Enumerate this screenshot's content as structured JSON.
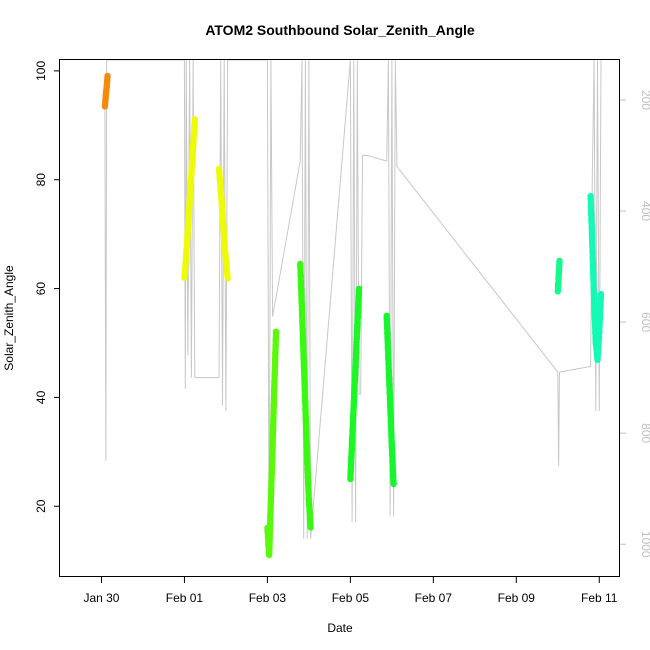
{
  "chart_data": {
    "type": "scatter",
    "title": "ATOM2 Southbound Solar_Zenith_Angle",
    "xlabel": "Date",
    "ylabel": "Solar_Zenith_Angle",
    "x_ticks": [
      "Jan 30",
      "Feb 01",
      "Feb 03",
      "Feb 05",
      "Feb 07",
      "Feb 09",
      "Feb 11"
    ],
    "y_ticks": [
      20,
      40,
      60,
      80,
      100
    ],
    "y_right_ticks": [
      200,
      400,
      600,
      800,
      1000
    ],
    "xlim": [
      "2012-01-29T00:00",
      "2012-02-11T12:00"
    ],
    "ylim": [
      7,
      102
    ],
    "y_right_lim": [
      1059,
      128
    ],
    "y_right_reversed": true,
    "grid": false,
    "depth_trace_color": "#c8c8c8",
    "series": [
      {
        "color": "#f58a0a",
        "points": [
          [
            "2012-01-30T02:00",
            93.5
          ],
          [
            "2012-01-30T02:30",
            95.5
          ],
          [
            "2012-01-30T03:00",
            97
          ],
          [
            "2012-01-30T03:30",
            99
          ]
        ]
      },
      {
        "color": "#eefb08",
        "points": [
          [
            "2012-02-01T00:00",
            62
          ],
          [
            "2012-02-01T01:00",
            66
          ],
          [
            "2012-02-01T02:00",
            71
          ],
          [
            "2012-02-01T03:00",
            76
          ],
          [
            "2012-02-01T04:00",
            81
          ],
          [
            "2012-02-01T05:00",
            86
          ],
          [
            "2012-02-01T06:00",
            91
          ]
        ]
      },
      {
        "color": "#eefb08",
        "points": [
          [
            "2012-02-01T20:00",
            82
          ],
          [
            "2012-02-01T21:00",
            78
          ],
          [
            "2012-02-01T22:00",
            74
          ],
          [
            "2012-02-01T23:00",
            69
          ],
          [
            "2012-02-02T00:00",
            65
          ],
          [
            "2012-02-02T01:00",
            62
          ]
        ]
      },
      {
        "color": "#5af90a",
        "points": [
          [
            "2012-02-03T00:00",
            16
          ],
          [
            "2012-02-03T01:00",
            11
          ],
          [
            "2012-02-03T02:00",
            21
          ],
          [
            "2012-02-03T03:00",
            31
          ],
          [
            "2012-02-03T04:00",
            42
          ],
          [
            "2012-02-03T05:00",
            52
          ]
        ]
      },
      {
        "color": "#39f910",
        "points": [
          [
            "2012-02-03T19:00",
            64.5
          ],
          [
            "2012-02-03T20:00",
            56
          ],
          [
            "2012-02-03T21:00",
            47
          ],
          [
            "2012-02-03T22:00",
            38
          ],
          [
            "2012-02-03T23:00",
            29
          ],
          [
            "2012-02-04T00:00",
            21
          ],
          [
            "2012-02-04T01:00",
            16
          ]
        ]
      },
      {
        "color": "#1bf825",
        "points": [
          [
            "2012-02-05T00:00",
            25
          ],
          [
            "2012-02-05T01:00",
            32
          ],
          [
            "2012-02-05T02:00",
            39
          ],
          [
            "2012-02-05T03:00",
            46
          ],
          [
            "2012-02-05T04:00",
            53
          ],
          [
            "2012-02-05T05:00",
            60
          ]
        ]
      },
      {
        "color": "#17f52e",
        "points": [
          [
            "2012-02-05T21:00",
            55
          ],
          [
            "2012-02-05T22:00",
            47
          ],
          [
            "2012-02-05T23:00",
            39
          ],
          [
            "2012-02-06T00:00",
            31
          ],
          [
            "2012-02-06T01:00",
            24
          ]
        ]
      },
      {
        "color": "#14fa8c",
        "points": [
          [
            "2012-02-10T00:00",
            59.5
          ],
          [
            "2012-02-10T00:30",
            62
          ],
          [
            "2012-02-10T01:00",
            65
          ]
        ]
      },
      {
        "color": "#14fab4",
        "points": [
          [
            "2012-02-10T19:00",
            77
          ],
          [
            "2012-02-10T20:00",
            68
          ],
          [
            "2012-02-10T21:00",
            58
          ],
          [
            "2012-02-10T22:00",
            50
          ],
          [
            "2012-02-10T23:00",
            47
          ],
          [
            "2012-02-11T00:00",
            52
          ],
          [
            "2012-02-11T01:00",
            59
          ]
        ]
      }
    ],
    "depth_trace": [
      [
        "2012-01-30T02:00",
        200
      ],
      [
        "2012-01-30T02:30",
        850
      ],
      [
        "2012-01-30T03:00",
        128
      ],
      [
        "2012-02-01T00:00",
        128
      ],
      [
        "2012-02-01T00:30",
        720
      ],
      [
        "2012-02-01T01:00",
        128
      ],
      [
        "2012-02-01T02:00",
        660
      ],
      [
        "2012-02-01T03:00",
        128
      ],
      [
        "2012-02-01T04:00",
        700
      ],
      [
        "2012-02-01T05:00",
        128
      ],
      [
        "2012-02-01T06:00",
        700
      ],
      [
        "2012-02-01T20:00",
        700
      ],
      [
        "2012-02-01T21:00",
        128
      ],
      [
        "2012-02-01T22:00",
        750
      ],
      [
        "2012-02-01T23:00",
        128
      ],
      [
        "2012-02-02T00:00",
        760
      ],
      [
        "2012-02-02T01:00",
        128
      ],
      [
        "2012-02-03T00:00",
        128
      ],
      [
        "2012-02-03T01:00",
        1020
      ],
      [
        "2012-02-03T02:00",
        128
      ],
      [
        "2012-02-03T03:00",
        590
      ],
      [
        "2012-02-03T19:00",
        310
      ],
      [
        "2012-02-03T20:00",
        128
      ],
      [
        "2012-02-03T21:00",
        990
      ],
      [
        "2012-02-03T22:00",
        128
      ],
      [
        "2012-02-03T23:00",
        990
      ],
      [
        "2012-02-04T00:00",
        128
      ],
      [
        "2012-02-04T01:00",
        990
      ],
      [
        "2012-02-05T00:00",
        128
      ],
      [
        "2012-02-05T01:00",
        960
      ],
      [
        "2012-02-05T02:00",
        128
      ],
      [
        "2012-02-05T03:00",
        960
      ],
      [
        "2012-02-05T04:00",
        128
      ],
      [
        "2012-02-05T05:00",
        730
      ],
      [
        "2012-02-05T06:00",
        730
      ],
      [
        "2012-02-05T07:00",
        300
      ],
      [
        "2012-02-05T10:00",
        300
      ],
      [
        "2012-02-05T21:00",
        310
      ],
      [
        "2012-02-05T22:00",
        128
      ],
      [
        "2012-02-05T23:00",
        950
      ],
      [
        "2012-02-06T00:00",
        128
      ],
      [
        "2012-02-06T01:00",
        950
      ],
      [
        "2012-02-06T02:00",
        128
      ],
      [
        "2012-02-06T03:00",
        320
      ],
      [
        "2012-02-10T00:00",
        690
      ],
      [
        "2012-02-10T00:30",
        860
      ],
      [
        "2012-02-10T01:00",
        690
      ],
      [
        "2012-02-10T19:00",
        680
      ],
      [
        "2012-02-10T20:00",
        340
      ],
      [
        "2012-02-10T21:00",
        128
      ],
      [
        "2012-02-10T22:00",
        760
      ],
      [
        "2012-02-10T23:00",
        128
      ],
      [
        "2012-02-11T00:00",
        760
      ],
      [
        "2012-02-11T01:00",
        128
      ]
    ]
  }
}
